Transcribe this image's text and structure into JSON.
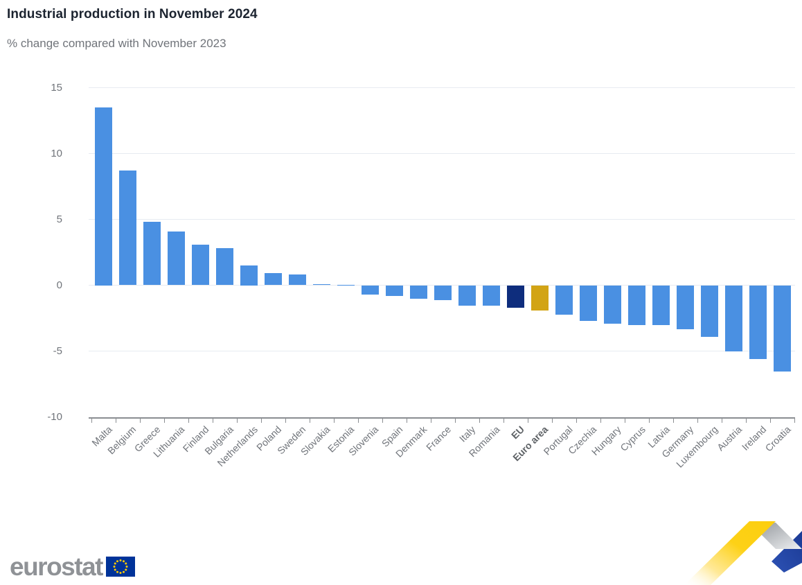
{
  "header": {
    "title": "Industrial production in November 2024",
    "subtitle": "% change compared with November 2023"
  },
  "chart_data": {
    "type": "bar",
    "title": "Industrial production in November 2024",
    "subtitle": "% change compared with November 2023",
    "categories": [
      "Malta",
      "Belgium",
      "Greece",
      "Lithuania",
      "Finland",
      "Bulgaria",
      "Netherlands",
      "Poland",
      "Sweden",
      "Slovakia",
      "Estonia",
      "Slovenia",
      "Spain",
      "Denmark",
      "France",
      "Italy",
      "Romania",
      "EU",
      "Euro area",
      "Portugal",
      "Czechia",
      "Hungary",
      "Cyprus",
      "Latvia",
      "Germany",
      "Luxembourg",
      "Austria",
      "Ireland",
      "Croatia"
    ],
    "values": [
      13.5,
      8.7,
      4.8,
      4.1,
      3.1,
      2.8,
      1.5,
      0.9,
      0.8,
      0.1,
      0.05,
      -0.7,
      -0.8,
      -1.0,
      -1.1,
      -1.5,
      -1.5,
      -1.7,
      -1.9,
      -2.2,
      -2.7,
      -2.9,
      -3.0,
      -3.0,
      -3.3,
      -3.9,
      -5.0,
      -5.6,
      -6.5
    ],
    "bold_categories": [
      "EU",
      "Euro area"
    ],
    "bar_colors": {
      "default": "#4a90e2",
      "EU": "#0e2d7d",
      "Euro area": "#d2a415"
    },
    "y_ticks": [
      15,
      10,
      5,
      0,
      -5,
      -10
    ],
    "ylim": [
      -10,
      15
    ],
    "xlabel": "",
    "ylabel": "% change",
    "grid": true,
    "legend": false
  },
  "footer": {
    "logo_text": "eurostat",
    "flag_icon": "eu-flag-icon",
    "ribbon_icon": "eurostat-ribbon-decoration",
    "colors": {
      "flag_blue": "#003399",
      "star_yellow": "#ffcc00",
      "ribbon_yellow": "#fdd116",
      "ribbon_gray": "#a7abb0",
      "ribbon_blue": "#2547a8"
    }
  }
}
